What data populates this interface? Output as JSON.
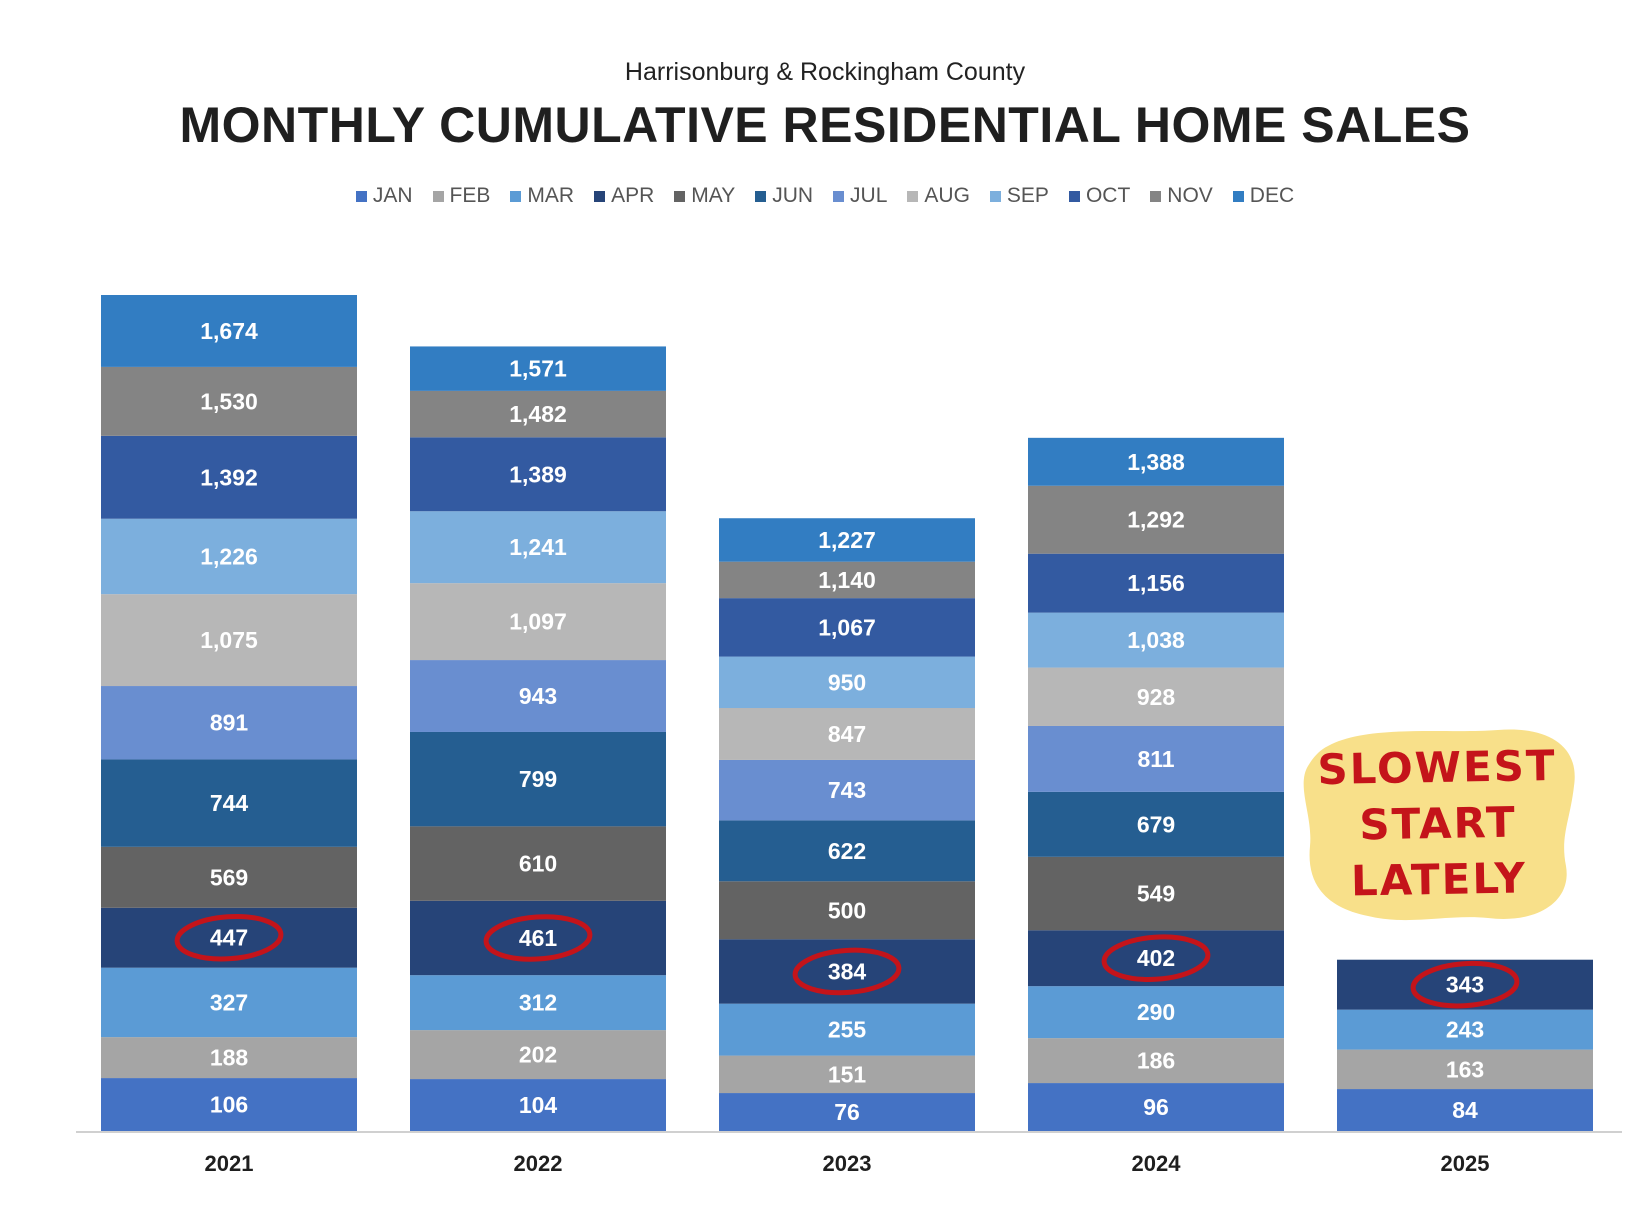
{
  "subtitle": "Harrisonburg & Rockingham County",
  "title": "MONTHLY CUMULATIVE RESIDENTIAL HOME SALES",
  "note": {
    "lines": [
      "SLOWEST",
      "START",
      "LATELY"
    ],
    "bg_color": "#f8e08a",
    "text_color": "#c4141a"
  },
  "circle_color": "#c4141a",
  "chart_data": {
    "type": "bar",
    "stacked": true,
    "title": "MONTHLY CUMULATIVE RESIDENTIAL HOME SALES",
    "subtitle": "Harrisonburg & Rockingham County",
    "categories": [
      "2021",
      "2022",
      "2023",
      "2024",
      "2025"
    ],
    "legend_position": "top",
    "highlight_month": "APR",
    "series": [
      {
        "name": "JAN",
        "color": "#4472c4",
        "values": [
          106,
          104,
          76,
          96,
          84
        ]
      },
      {
        "name": "FEB",
        "color": "#a5a5a5",
        "values": [
          188,
          202,
          151,
          186,
          163
        ]
      },
      {
        "name": "MAR",
        "color": "#5b9bd5",
        "values": [
          327,
          312,
          255,
          290,
          243
        ]
      },
      {
        "name": "APR",
        "color": "#264478",
        "values": [
          447,
          461,
          384,
          402,
          343
        ]
      },
      {
        "name": "MAY",
        "color": "#636363",
        "values": [
          569,
          610,
          500,
          549,
          null
        ]
      },
      {
        "name": "JUN",
        "color": "#255e91",
        "values": [
          744,
          799,
          622,
          679,
          null
        ]
      },
      {
        "name": "JUL",
        "color": "#698ed0",
        "values": [
          891,
          943,
          743,
          811,
          null
        ]
      },
      {
        "name": "AUG",
        "color": "#b7b7b7",
        "values": [
          1075,
          1097,
          847,
          928,
          null
        ]
      },
      {
        "name": "SEP",
        "color": "#7cafdd",
        "values": [
          1226,
          1241,
          950,
          1038,
          null
        ]
      },
      {
        "name": "OCT",
        "color": "#335aa1",
        "values": [
          1392,
          1389,
          1067,
          1156,
          null
        ]
      },
      {
        "name": "NOV",
        "color": "#848484",
        "values": [
          1530,
          1482,
          1140,
          1292,
          null
        ]
      },
      {
        "name": "DEC",
        "color": "#327dc2",
        "values": [
          1674,
          1571,
          1227,
          1388,
          null
        ]
      }
    ],
    "value_labels": [
      [
        "106",
        "188",
        "327",
        "447",
        "569",
        "744",
        "891",
        "1,075",
        "1,226",
        "1,392",
        "1,530",
        "1,674"
      ],
      [
        "104",
        "202",
        "312",
        "461",
        "610",
        "799",
        "943",
        "1,097",
        "1,241",
        "1,389",
        "1,482",
        "1,571"
      ],
      [
        "76",
        "151",
        "255",
        "384",
        "500",
        "622",
        "743",
        "847",
        "950",
        "1,067",
        "1,140",
        "1,227"
      ],
      [
        "96",
        "186",
        "290",
        "402",
        "549",
        "679",
        "811",
        "928",
        "1,038",
        "1,156",
        "1,292",
        "1,388"
      ],
      [
        "84",
        "163",
        "243",
        "343"
      ]
    ]
  }
}
